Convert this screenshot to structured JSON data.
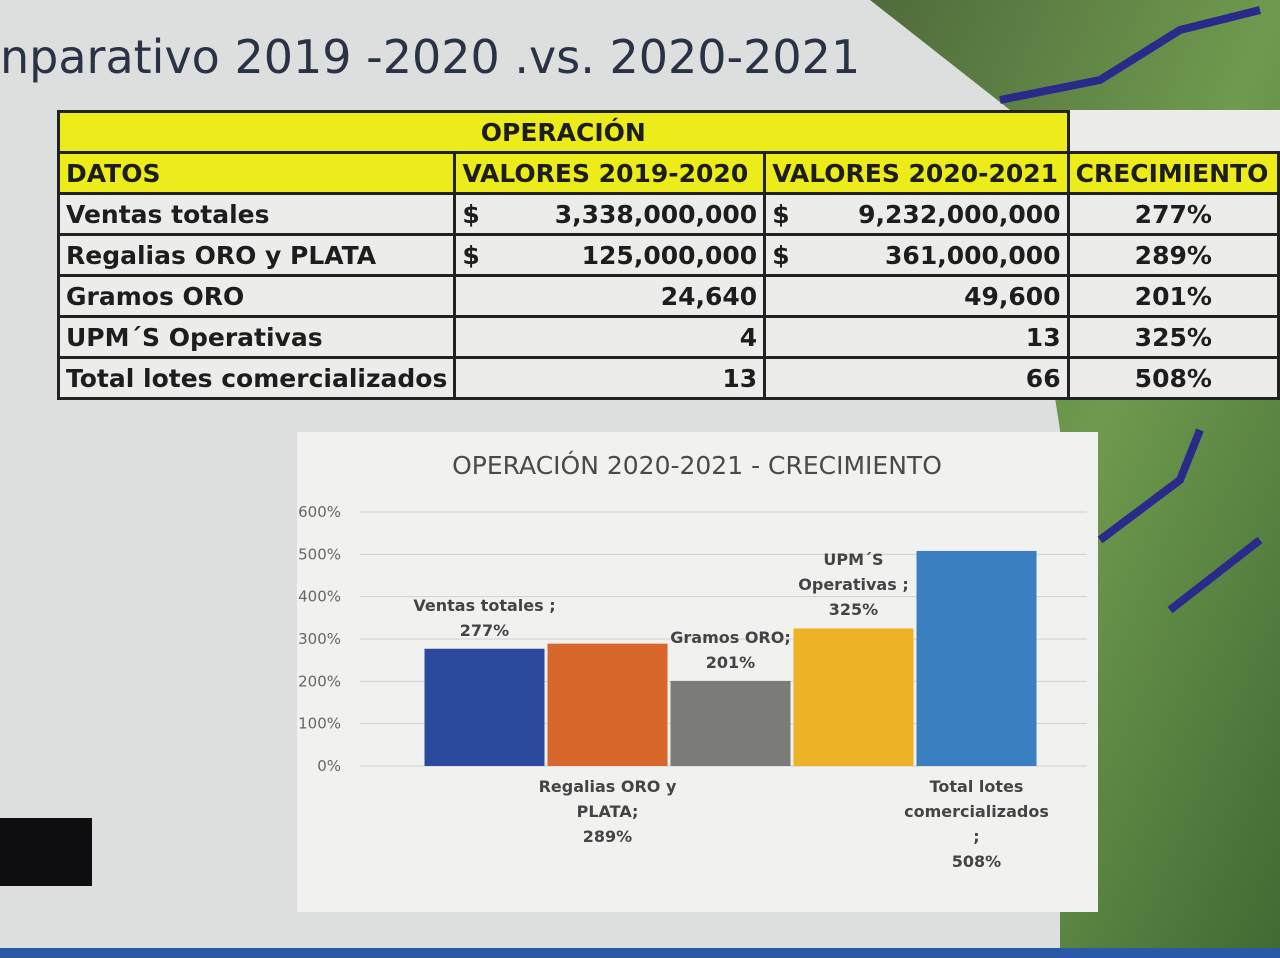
{
  "header": {
    "title": "nparativo 2019 -2020 .vs. 2020-2021"
  },
  "table": {
    "group_header": "OPERACIÓN",
    "columns": [
      "DATOS",
      "VALORES 2019-2020",
      "VALORES 2020-2021",
      "CRECIMIENTO"
    ],
    "rows": [
      {
        "dato": "Ventas totales",
        "v1": {
          "currency": "$",
          "amount": "3,338,000,000"
        },
        "v2": {
          "currency": "$",
          "amount": "9,232,000,000"
        },
        "growth": "277%"
      },
      {
        "dato": "Regalias ORO y PLATA",
        "v1": {
          "currency": "$",
          "amount": "125,000,000"
        },
        "v2": {
          "currency": "$",
          "amount": "361,000,000"
        },
        "growth": "289%"
      },
      {
        "dato": "Gramos ORO",
        "v1": {
          "amount": "24,640"
        },
        "v2": {
          "amount": "49,600"
        },
        "growth": "201%"
      },
      {
        "dato": "UPM´S Operativas",
        "v1": {
          "amount": "4"
        },
        "v2": {
          "amount": "13"
        },
        "growth": "325%"
      },
      {
        "dato": "Total lotes comercializados",
        "v1": {
          "amount": "13"
        },
        "v2": {
          "amount": "66"
        },
        "growth": "508%"
      }
    ]
  },
  "chart_data": {
    "type": "bar",
    "title": "OPERACIÓN 2020-2021  - CRECIMIENTO",
    "categories": [
      "Ventas totales ;",
      "Regalias ORO y PLATA;",
      "Gramos ORO;",
      "UPM´S Operativas ;",
      "Total lotes comercializados ;"
    ],
    "values": [
      277,
      289,
      201,
      325,
      508
    ],
    "value_labels": [
      "277%",
      "289%",
      "201%",
      "325%",
      "508%"
    ],
    "colors": [
      "#2b4a9e",
      "#d8672b",
      "#7b7b79",
      "#eeb226",
      "#3a7fbf"
    ],
    "ylim": [
      0,
      600
    ],
    "yticks": [
      {
        "value": 0,
        "label": "0%"
      },
      {
        "value": 100,
        "label": "100%"
      },
      {
        "value": 200,
        "label": "200%"
      },
      {
        "value": 300,
        "label": "300%"
      },
      {
        "value": 400,
        "label": "400%"
      },
      {
        "value": 500,
        "label": "500%"
      },
      {
        "value": 600,
        "label": "600%"
      }
    ],
    "grid": true
  }
}
